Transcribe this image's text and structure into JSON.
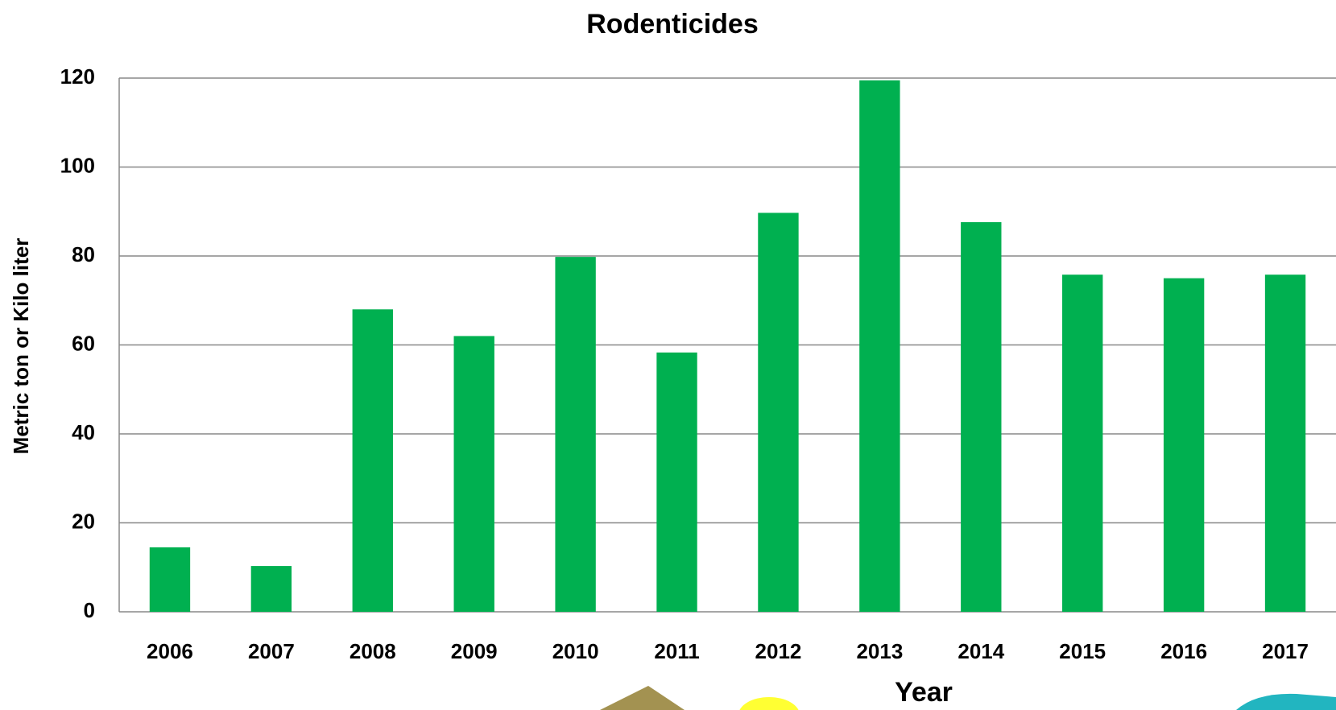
{
  "chart_data": {
    "type": "bar",
    "title": "Rodenticides",
    "x_label": "Year",
    "y_label": "Metric ton or Kilo liter",
    "categories": [
      "2006",
      "2007",
      "2008",
      "2009",
      "2010",
      "2011",
      "2012",
      "2013",
      "2014",
      "2015",
      "2016",
      "2017"
    ],
    "values": [
      14.5,
      10.3,
      68,
      62,
      79.8,
      58.3,
      89.7,
      119.5,
      87.6,
      75.8,
      75,
      75.8
    ],
    "color": "#00b050",
    "ylim": [
      0,
      120
    ],
    "yticks": [
      0,
      20,
      40,
      60,
      80,
      100,
      120
    ],
    "grid": true
  }
}
